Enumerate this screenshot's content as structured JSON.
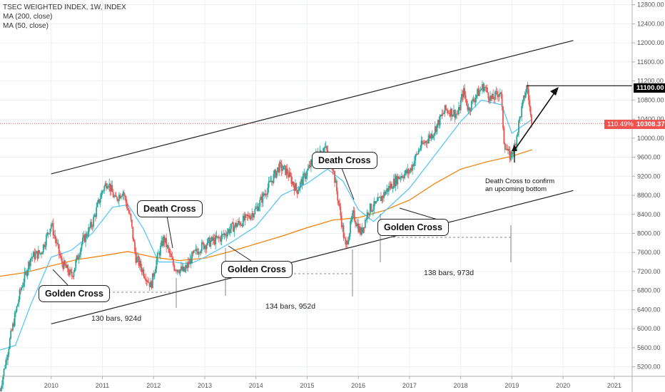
{
  "legend": {
    "title": "TSEC WEIGHTED INDEX, 1W, INDEX",
    "ma200": "MA (200, close)",
    "ma50": "MA (50, close)"
  },
  "annotations": {
    "golden_cross_1": "Golden Cross",
    "death_cross_1": "Death Cross",
    "golden_cross_2": "Golden Cross",
    "death_cross_2": "Death Cross",
    "golden_cross_3": "Golden Cross",
    "bars_1": "130 bars, 924d",
    "bars_2": "134 bars, 952d",
    "bars_3": "138 bars, 973d",
    "death_cross_note_line1": "Death Cross to confirm",
    "death_cross_note_line2": "an upcoming bottom"
  },
  "price_tags": {
    "target": "11100.00",
    "last_pct": "110.49%",
    "last": "10308.37"
  },
  "colors": {
    "up": "#26a69a",
    "down": "#ef5350",
    "ma200": "#f57c00",
    "ma50": "#4fc3f7",
    "channel": "#222222",
    "last_price": "#ef5350"
  },
  "chart_data": {
    "type": "candlestick",
    "title": "TSEC WEIGHTED INDEX, 1W, INDEX",
    "ylim": [
      5000,
      12900
    ],
    "y_ticks": [
      5200,
      5600,
      6000,
      6400,
      6800,
      7200,
      7600,
      8000,
      8400,
      8800,
      9200,
      9600,
      10000,
      10400,
      10800,
      11200,
      11600,
      12000,
      12400,
      12800
    ],
    "x_ticks": [
      "2010",
      "2011",
      "2012",
      "2013",
      "2014",
      "2015",
      "2016",
      "2017",
      "2018",
      "2019",
      "2020",
      "2021"
    ],
    "price_path_approx": [
      [
        2009.0,
        4700
      ],
      [
        2009.2,
        5800
      ],
      [
        2009.4,
        6800
      ],
      [
        2009.6,
        7500
      ],
      [
        2009.8,
        7600
      ],
      [
        2010.0,
        8200
      ],
      [
        2010.2,
        7400
      ],
      [
        2010.4,
        7100
      ],
      [
        2010.6,
        7800
      ],
      [
        2010.8,
        8200
      ],
      [
        2011.0,
        8900
      ],
      [
        2011.1,
        9100
      ],
      [
        2011.25,
        8700
      ],
      [
        2011.4,
        8900
      ],
      [
        2011.55,
        8300
      ],
      [
        2011.65,
        7500
      ],
      [
        2011.8,
        7200
      ],
      [
        2011.95,
        6900
      ],
      [
        2012.05,
        7400
      ],
      [
        2012.2,
        7900
      ],
      [
        2012.4,
        7300
      ],
      [
        2012.6,
        7200
      ],
      [
        2012.75,
        7500
      ],
      [
        2012.9,
        7700
      ],
      [
        2013.05,
        7800
      ],
      [
        2013.3,
        7900
      ],
      [
        2013.5,
        8100
      ],
      [
        2013.8,
        8300
      ],
      [
        2014.0,
        8500
      ],
      [
        2014.2,
        8900
      ],
      [
        2014.45,
        9400
      ],
      [
        2014.6,
        9300
      ],
      [
        2014.8,
        8900
      ],
      [
        2015.0,
        9300
      ],
      [
        2015.2,
        9700
      ],
      [
        2015.35,
        9800
      ],
      [
        2015.5,
        9400
      ],
      [
        2015.65,
        8400
      ],
      [
        2015.75,
        7700
      ],
      [
        2015.9,
        8400
      ],
      [
        2016.05,
        8000
      ],
      [
        2016.2,
        8500
      ],
      [
        2016.35,
        8600
      ],
      [
        2016.55,
        8900
      ],
      [
        2016.8,
        9200
      ],
      [
        2017.0,
        9300
      ],
      [
        2017.2,
        9800
      ],
      [
        2017.45,
        10100
      ],
      [
        2017.7,
        10600
      ],
      [
        2017.95,
        10500
      ],
      [
        2018.05,
        11000
      ],
      [
        2018.15,
        10600
      ],
      [
        2018.3,
        10900
      ],
      [
        2018.45,
        11100
      ],
      [
        2018.6,
        10800
      ],
      [
        2018.78,
        11000
      ],
      [
        2018.85,
        9900
      ],
      [
        2018.95,
        9600
      ],
      [
        2019.05,
        9800
      ],
      [
        2019.15,
        10400
      ],
      [
        2019.25,
        10900
      ],
      [
        2019.3,
        11100
      ],
      [
        2019.38,
        10300
      ]
    ],
    "ma200_approx": [
      [
        2009.0,
        7100
      ],
      [
        2009.5,
        7180
      ],
      [
        2010.0,
        7320
      ],
      [
        2010.5,
        7450
      ],
      [
        2011.0,
        7530
      ],
      [
        2011.5,
        7620
      ],
      [
        2012.0,
        7500
      ],
      [
        2012.5,
        7430
      ],
      [
        2013.0,
        7480
      ],
      [
        2013.5,
        7620
      ],
      [
        2014.0,
        7780
      ],
      [
        2014.5,
        7940
      ],
      [
        2015.0,
        8120
      ],
      [
        2015.5,
        8280
      ],
      [
        2016.0,
        8330
      ],
      [
        2016.5,
        8480
      ],
      [
        2017.0,
        8700
      ],
      [
        2017.5,
        9050
      ],
      [
        2018.0,
        9350
      ],
      [
        2018.5,
        9500
      ],
      [
        2019.0,
        9620
      ],
      [
        2019.4,
        9760
      ]
    ],
    "ma50_approx": [
      [
        2009.0,
        5550
      ],
      [
        2009.3,
        5650
      ],
      [
        2009.6,
        6500
      ],
      [
        2010.0,
        7500
      ],
      [
        2010.4,
        7650
      ],
      [
        2010.8,
        8000
      ],
      [
        2011.2,
        8550
      ],
      [
        2011.5,
        8600
      ],
      [
        2011.8,
        8100
      ],
      [
        2012.1,
        7400
      ],
      [
        2012.4,
        7400
      ],
      [
        2012.7,
        7350
      ],
      [
        2013.0,
        7500
      ],
      [
        2013.5,
        7800
      ],
      [
        2014.0,
        8150
      ],
      [
        2014.5,
        8800
      ],
      [
        2015.0,
        9050
      ],
      [
        2015.4,
        9350
      ],
      [
        2015.7,
        9100
      ],
      [
        2016.0,
        8500
      ],
      [
        2016.3,
        8250
      ],
      [
        2016.6,
        8550
      ],
      [
        2017.0,
        8950
      ],
      [
        2017.5,
        9650
      ],
      [
        2018.0,
        10350
      ],
      [
        2018.4,
        10800
      ],
      [
        2018.8,
        10700
      ],
      [
        2019.0,
        10100
      ],
      [
        2019.4,
        10400
      ]
    ],
    "channel_upper": [
      [
        2010.0,
        9250
      ],
      [
        2020.2,
        12050
      ]
    ],
    "channel_lower": [
      [
        2010.0,
        6100
      ],
      [
        2020.2,
        8900
      ]
    ],
    "resistance_level": 11100,
    "last_price": 10308.37,
    "last_change": "110.49%",
    "golden_cross_dates": [
      2012.7,
      2016.45
    ],
    "death_cross_dates": [
      2012.6,
      2016.3
    ]
  }
}
